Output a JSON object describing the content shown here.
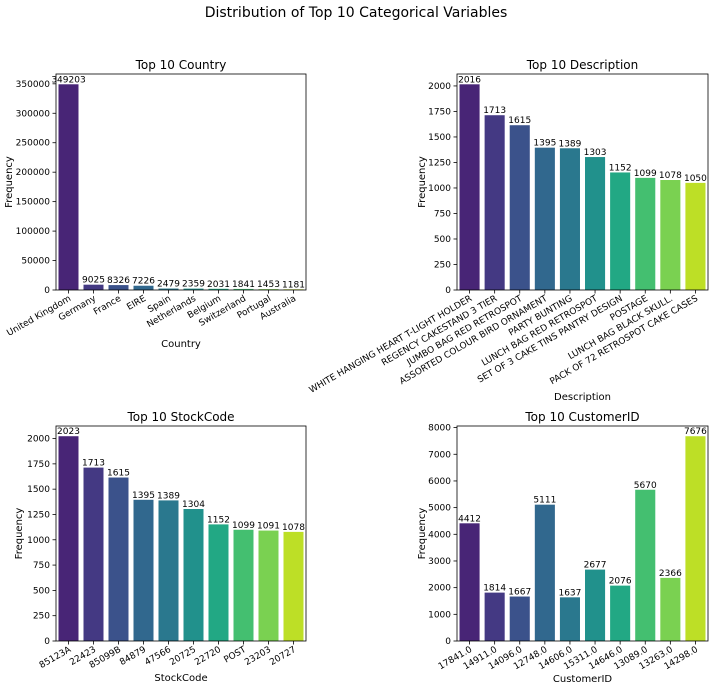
{
  "figure": {
    "suptitle": "Distribution of Top 10 Categorical Variables"
  },
  "chart_data": [
    {
      "type": "bar",
      "title": "Top 10 Country",
      "xlabel": "Country",
      "ylabel": "Frequency",
      "categories": [
        "United Kingdom",
        "Germany",
        "France",
        "EIRE",
        "Spain",
        "Netherlands",
        "Belgium",
        "Switzerland",
        "Portugal",
        "Australia"
      ],
      "values": [
        349203,
        9025,
        8326,
        7226,
        2479,
        2359,
        2031,
        1841,
        1453,
        1181
      ],
      "ylim": [
        0,
        366663
      ],
      "yticks": [
        0,
        50000,
        100000,
        150000,
        200000,
        250000,
        300000,
        350000
      ],
      "ytick_labels": [
        "0",
        "50000",
        "100000",
        "150000",
        "200000",
        "250000",
        "300000",
        "350000"
      ],
      "colors": [
        "#482576",
        "#443983",
        "#3b528b",
        "#31688e",
        "#2a788e",
        "#21918c",
        "#22a884",
        "#44bf70",
        "#7ad151",
        "#bddf26"
      ]
    },
    {
      "type": "bar",
      "title": "Top 10 Description",
      "xlabel": "Description",
      "ylabel": "Frequency",
      "categories": [
        "WHITE HANGING HEART T-LIGHT HOLDER",
        "REGENCY CAKESTAND 3 TIER",
        "JUMBO BAG RED RETROSPOT",
        "ASSORTED COLOUR BIRD ORNAMENT",
        "PARTY BUNTING",
        "LUNCH BAG RED RETROSPOT",
        "SET OF 3 CAKE TINS PANTRY DESIGN",
        "POSTAGE",
        "LUNCH BAG  BLACK SKULL.",
        "PACK OF 72 RETROSPOT CAKE CASES"
      ],
      "values": [
        2016,
        1713,
        1615,
        1395,
        1389,
        1303,
        1152,
        1099,
        1078,
        1050
      ],
      "ylim": [
        0,
        2117
      ],
      "yticks": [
        0,
        250,
        500,
        750,
        1000,
        1250,
        1500,
        1750,
        2000
      ],
      "ytick_labels": [
        "0",
        "250",
        "500",
        "750",
        "1000",
        "1250",
        "1500",
        "1750",
        "2000"
      ],
      "colors": [
        "#482576",
        "#443983",
        "#3b528b",
        "#31688e",
        "#2a788e",
        "#21918c",
        "#22a884",
        "#44bf70",
        "#7ad151",
        "#bddf26"
      ]
    },
    {
      "type": "bar",
      "title": "Top 10 StockCode",
      "xlabel": "StockCode",
      "ylabel": "Frequency",
      "categories": [
        "85123A",
        "22423",
        "85099B",
        "84879",
        "47566",
        "20725",
        "22720",
        "POST",
        "23203",
        "20727"
      ],
      "values": [
        2023,
        1713,
        1615,
        1395,
        1389,
        1304,
        1152,
        1099,
        1091,
        1078
      ],
      "ylim": [
        0,
        2124
      ],
      "yticks": [
        0,
        250,
        500,
        750,
        1000,
        1250,
        1500,
        1750,
        2000
      ],
      "ytick_labels": [
        "0",
        "250",
        "500",
        "750",
        "1000",
        "1250",
        "1500",
        "1750",
        "2000"
      ],
      "colors": [
        "#482576",
        "#443983",
        "#3b528b",
        "#31688e",
        "#2a788e",
        "#21918c",
        "#22a884",
        "#44bf70",
        "#7ad151",
        "#bddf26"
      ]
    },
    {
      "type": "bar",
      "title": "Top 10 CustomerID",
      "xlabel": "CustomerID",
      "ylabel": "Frequency",
      "categories": [
        "17841.0",
        "14911.0",
        "14096.0",
        "12748.0",
        "14606.0",
        "15311.0",
        "14646.0",
        "13089.0",
        "13263.0",
        "14298.0"
      ],
      "values": [
        4412,
        1814,
        1667,
        5111,
        1637,
        2677,
        2076,
        5670,
        2366,
        7676
      ],
      "ylim": [
        0,
        8060
      ],
      "yticks": [
        0,
        1000,
        2000,
        3000,
        4000,
        5000,
        6000,
        7000,
        8000
      ],
      "ytick_labels": [
        "0",
        "1000",
        "2000",
        "3000",
        "4000",
        "5000",
        "6000",
        "7000",
        "8000"
      ],
      "colors": [
        "#482576",
        "#443983",
        "#3b528b",
        "#31688e",
        "#2a788e",
        "#21918c",
        "#22a884",
        "#44bf70",
        "#7ad151",
        "#bddf26"
      ]
    }
  ]
}
